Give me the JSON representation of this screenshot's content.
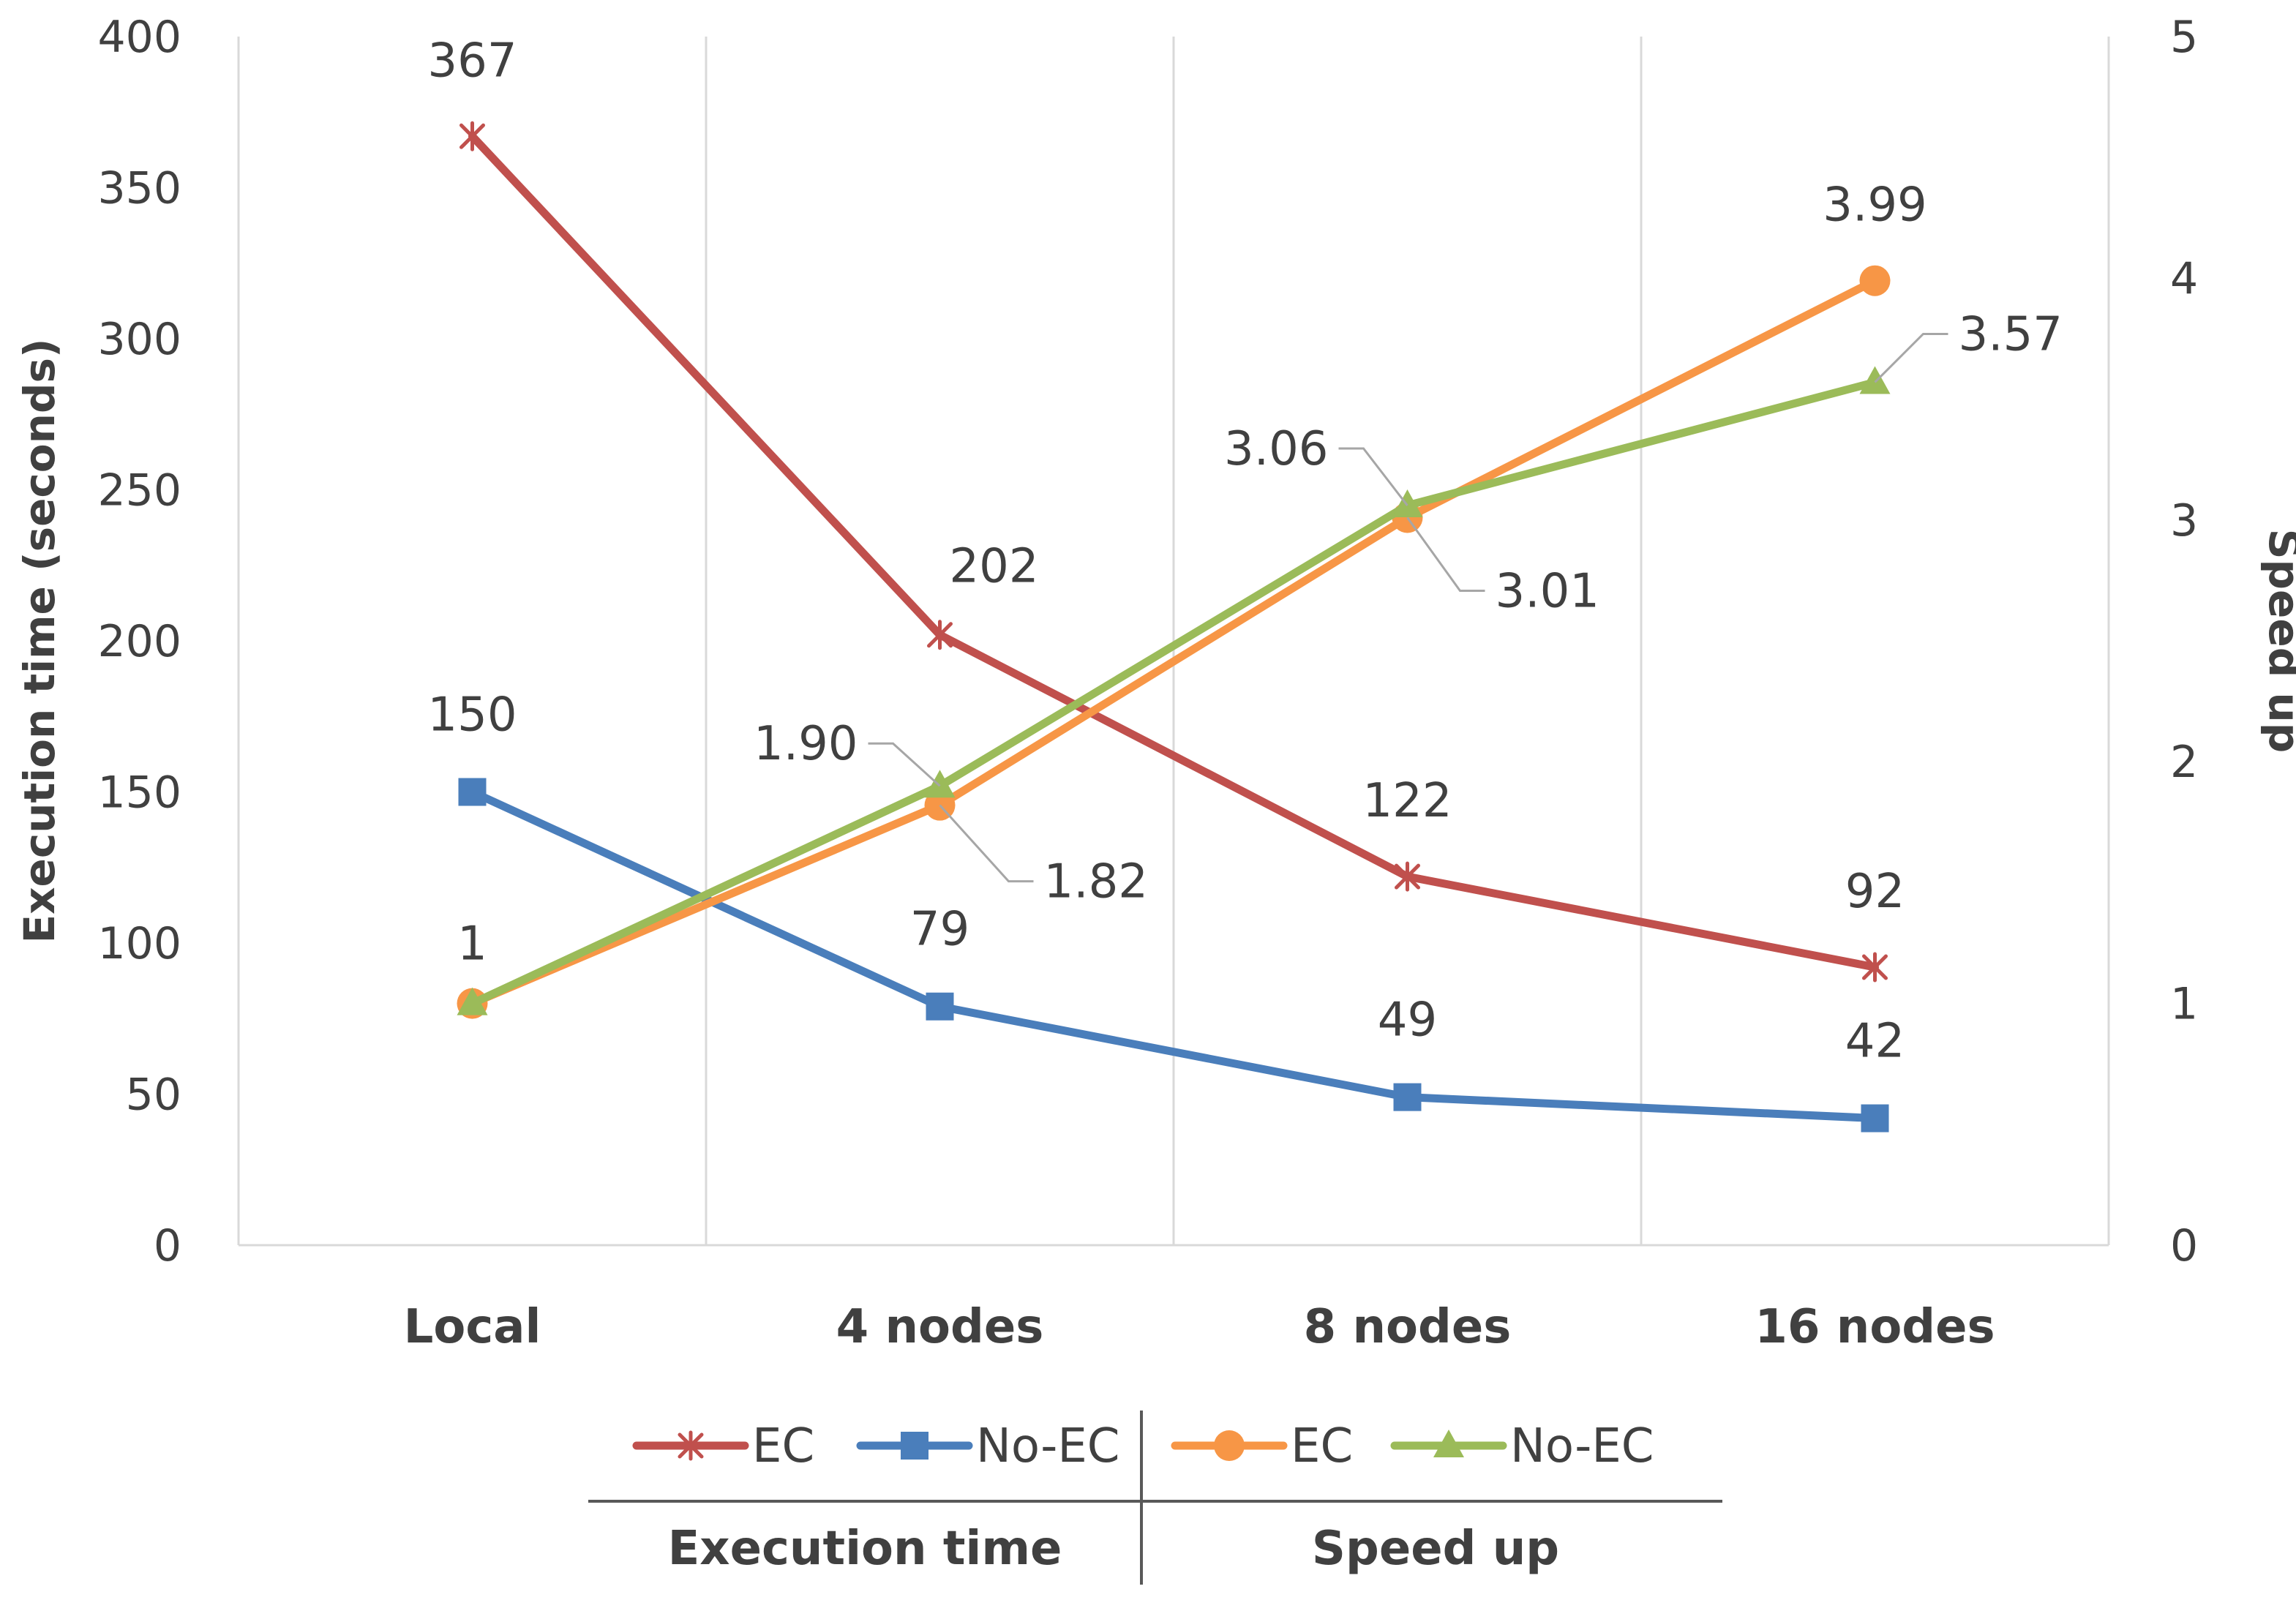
{
  "chart_data": {
    "type": "line",
    "categories": [
      "Local",
      "4 nodes",
      "8 nodes",
      "16 nodes"
    ],
    "y_left": {
      "label": "Execution time (seconds)",
      "min": 0,
      "max": 400,
      "step": 50,
      "ticks": [
        "0",
        "50",
        "100",
        "150",
        "200",
        "250",
        "300",
        "350",
        "400"
      ]
    },
    "y_right": {
      "label": "Speed up",
      "min": 0,
      "max": 5,
      "step": 1,
      "ticks": [
        "0",
        "1",
        "2",
        "3",
        "4",
        "5"
      ]
    },
    "series": [
      {
        "name": "EC",
        "group": "Execution time",
        "axis": "left",
        "color": "#C0504D",
        "marker": "star",
        "values": [
          367,
          202,
          122,
          92
        ],
        "labels": [
          "367",
          "202",
          "122",
          "92"
        ]
      },
      {
        "name": "No-EC",
        "group": "Execution time",
        "axis": "left",
        "color": "#4A7EBB",
        "marker": "square",
        "values": [
          150,
          79,
          49,
          42
        ],
        "labels": [
          "150",
          "79",
          "49",
          "42"
        ]
      },
      {
        "name": "EC",
        "group": "Speed up",
        "axis": "right",
        "color": "#F79646",
        "marker": "circle",
        "values": [
          1,
          1.82,
          3.01,
          3.99
        ],
        "labels": [
          "1",
          "1.82",
          "3.01",
          "3.99"
        ]
      },
      {
        "name": "No-EC",
        "group": "Speed up",
        "axis": "right",
        "color": "#9BBB59",
        "marker": "triangle",
        "values": [
          1,
          1.9,
          3.06,
          3.57
        ],
        "labels": [
          "",
          "1.90",
          "3.06",
          "3.57"
        ]
      }
    ],
    "legend": {
      "position": "bottom",
      "groups": [
        {
          "title": "Execution time",
          "series": [
            0,
            1
          ]
        },
        {
          "title": "Speed up",
          "series": [
            2,
            3
          ]
        }
      ]
    },
    "grid": {
      "vertical": true,
      "horizontal": false
    }
  }
}
